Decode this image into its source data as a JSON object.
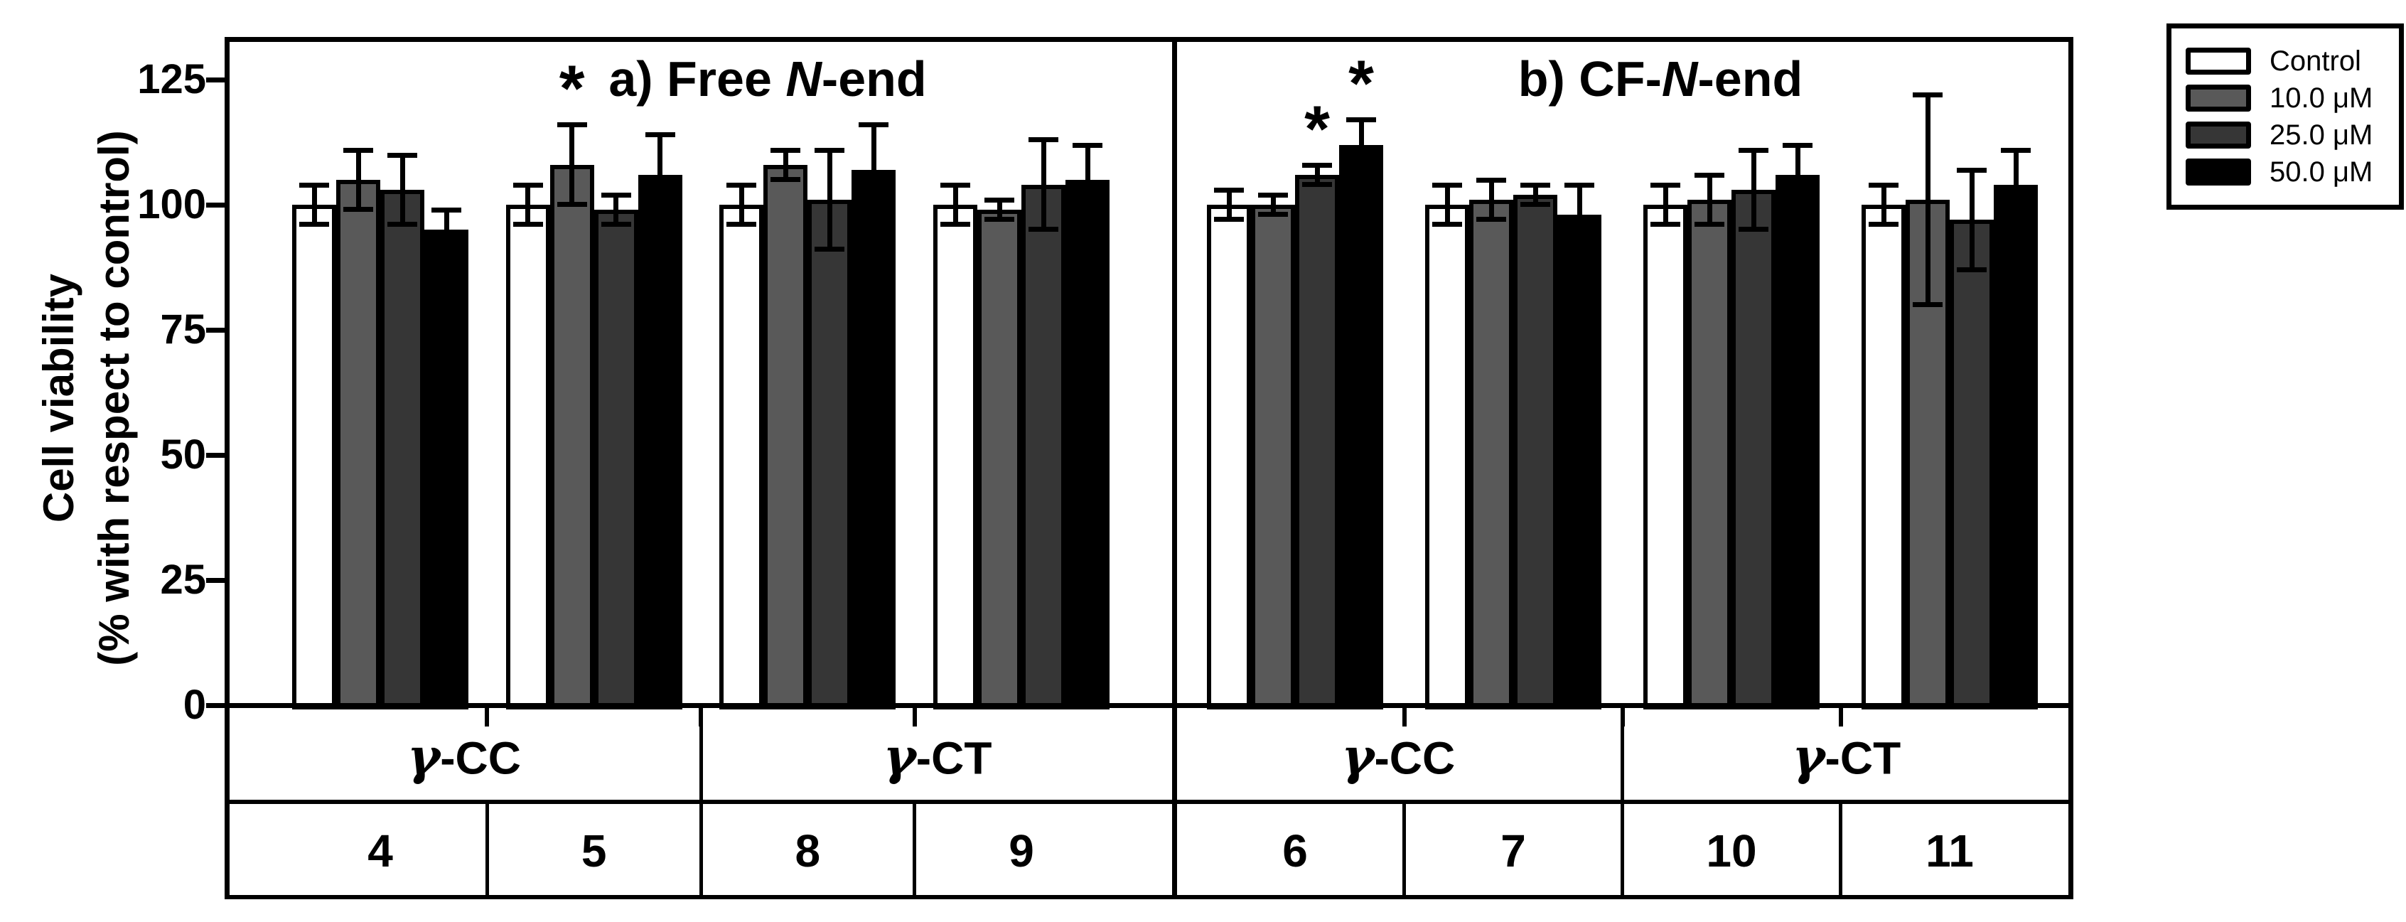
{
  "figure": {
    "ylabel": {
      "line1": "Cell viability",
      "line2": "(% with respect to control)"
    },
    "asterisk": "*"
  },
  "legend": {
    "items": [
      {
        "label": "Control",
        "color": "#ffffff"
      },
      {
        "label": "10.0 μM",
        "color": "#595959"
      },
      {
        "label": "25.0 μM",
        "color": "#363636"
      },
      {
        "label": "50.0 μM",
        "color": "#000000"
      }
    ]
  },
  "chart_data": {
    "type": "bar",
    "ylabel": "Cell viability (% with respect to control)",
    "yticks": [
      0,
      25,
      50,
      75,
      100,
      125
    ],
    "ylim": [
      0,
      133
    ],
    "grid": false,
    "legend_position": "outside-top-right",
    "series": [
      "Control",
      "10.0 μM",
      "25.0 μM",
      "50.0 μM"
    ],
    "series_colors": [
      "#ffffff",
      "#595959",
      "#363636",
      "#000000"
    ],
    "panels": [
      {
        "title": {
          "pre": "a) Free ",
          "italic": "N",
          "post": "-end"
        },
        "families": [
          {
            "sym": "γ",
            "rest": "-CC",
            "span": 2
          },
          {
            "sym": "γ",
            "rest": "-CT",
            "span": 2
          }
        ],
        "groups": [
          {
            "id": "4",
            "family": "γ-CC",
            "values": [
              100,
              105,
              103,
              95
            ],
            "errors": [
              4,
              6,
              7,
              4
            ],
            "sig": [
              false,
              false,
              false,
              false
            ]
          },
          {
            "id": "5",
            "family": "γ-CC",
            "values": [
              100,
              108,
              99,
              106
            ],
            "errors": [
              4,
              8,
              3,
              8
            ],
            "sig": [
              false,
              true,
              false,
              false
            ]
          },
          {
            "id": "8",
            "family": "γ-CT",
            "values": [
              100,
              108,
              101,
              107
            ],
            "errors": [
              4,
              3,
              10,
              9
            ],
            "sig": [
              false,
              false,
              false,
              false
            ]
          },
          {
            "id": "9",
            "family": "γ-CT",
            "values": [
              100,
              99,
              104,
              105
            ],
            "errors": [
              4,
              2,
              9,
              7
            ],
            "sig": [
              false,
              false,
              false,
              false
            ]
          }
        ]
      },
      {
        "title": {
          "pre": "b) CF-",
          "italic": "N",
          "post": "-end"
        },
        "families": [
          {
            "sym": "γ",
            "rest": "-CC",
            "span": 2
          },
          {
            "sym": "γ",
            "rest": "-CT",
            "span": 2
          }
        ],
        "groups": [
          {
            "id": "6",
            "family": "γ-CC",
            "values": [
              100,
              100,
              106,
              112
            ],
            "errors": [
              3,
              2,
              2,
              5
            ],
            "sig": [
              false,
              false,
              true,
              true
            ]
          },
          {
            "id": "7",
            "family": "γ-CC",
            "values": [
              100,
              101,
              102,
              98
            ],
            "errors": [
              4,
              4,
              2,
              6
            ],
            "sig": [
              false,
              false,
              false,
              false
            ]
          },
          {
            "id": "10",
            "family": "γ-CT",
            "values": [
              100,
              101,
              103,
              106
            ],
            "errors": [
              4,
              5,
              8,
              6
            ],
            "sig": [
              false,
              false,
              false,
              false
            ]
          },
          {
            "id": "11",
            "family": "γ-CT",
            "values": [
              100,
              101,
              97,
              104
            ],
            "errors": [
              4,
              21,
              10,
              7
            ],
            "sig": [
              false,
              false,
              false,
              false
            ]
          }
        ]
      }
    ]
  }
}
